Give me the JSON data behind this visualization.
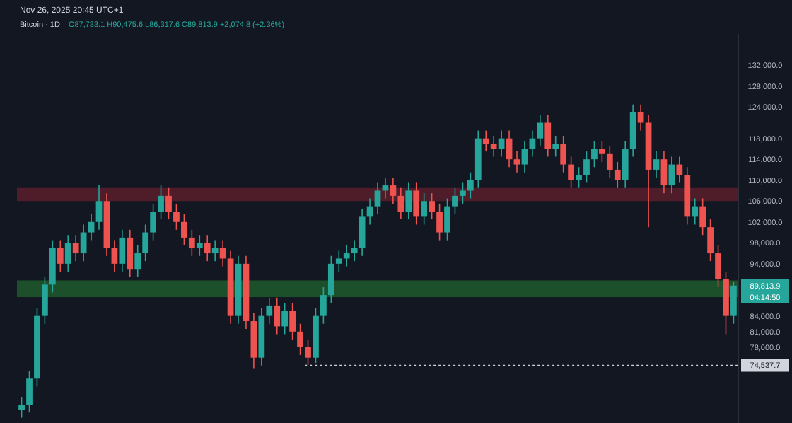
{
  "chart_data": {
    "type": "candlestick",
    "title": "Bitcoin · 1D",
    "annotations": [
      "Nov 26, 2025 20:45 UTC+1",
      "O87,733.1 H90,475.6 L86,317.6 C89,813.9 +2,074.8 (+2.36%)",
      "89,813.9",
      "04:14:50"
    ],
    "categories": [
      null,
      null,
      null,
      null,
      null,
      null,
      null,
      null,
      null,
      null,
      null,
      null,
      null,
      null,
      null,
      null,
      null,
      null,
      null,
      null,
      null,
      null,
      null,
      null,
      null,
      null,
      null,
      null,
      null,
      null,
      null,
      null,
      null,
      null,
      null,
      null,
      null,
      null,
      null,
      null,
      null,
      null,
      null,
      null,
      null,
      null,
      null,
      null,
      null,
      null,
      null,
      null,
      null,
      null,
      null,
      null,
      null,
      null,
      null,
      null,
      null,
      null,
      null,
      null,
      null,
      null,
      null,
      null,
      null,
      null,
      null,
      null,
      null,
      null,
      null,
      null,
      null,
      null,
      null,
      null,
      null,
      null,
      null,
      null,
      null,
      null,
      null,
      null,
      null,
      null,
      null,
      null,
      null
    ],
    "ohlc": [
      [
        66000,
        68500,
        64500,
        67000
      ],
      [
        67000,
        73500,
        65500,
        72000
      ],
      [
        72000,
        85500,
        70500,
        84000
      ],
      [
        84000,
        91500,
        82500,
        90000
      ],
      [
        90000,
        98500,
        88500,
        97000
      ],
      [
        97000,
        98500,
        92500,
        94000
      ],
      [
        94000,
        99500,
        92500,
        98000
      ],
      [
        98000,
        99500,
        94500,
        96000
      ],
      [
        96000,
        101500,
        94500,
        100000
      ],
      [
        100000,
        103500,
        98500,
        102000
      ],
      [
        102000,
        109000,
        100500,
        106000
      ],
      [
        106000,
        107500,
        95500,
        97000
      ],
      [
        97000,
        98500,
        92500,
        94000
      ],
      [
        94000,
        100500,
        92500,
        99000
      ],
      [
        99000,
        100500,
        91500,
        93000
      ],
      [
        93000,
        97500,
        91500,
        96000
      ],
      [
        96000,
        101500,
        94500,
        100000
      ],
      [
        100000,
        105500,
        98500,
        104000
      ],
      [
        104000,
        109000,
        102500,
        107000
      ],
      [
        107000,
        108500,
        102500,
        104000
      ],
      [
        104000,
        105500,
        100500,
        102000
      ],
      [
        102000,
        103500,
        97500,
        99000
      ],
      [
        99000,
        100500,
        95500,
        97000
      ],
      [
        97000,
        99500,
        95500,
        98000
      ],
      [
        98000,
        99500,
        94500,
        96000
      ],
      [
        96000,
        98500,
        94500,
        97000
      ],
      [
        97000,
        98500,
        93500,
        95000
      ],
      [
        95000,
        96500,
        82500,
        84000
      ],
      [
        84000,
        95500,
        82500,
        94000
      ],
      [
        94000,
        95500,
        81500,
        83000
      ],
      [
        83000,
        84500,
        74000,
        76000
      ],
      [
        76000,
        85500,
        74500,
        84000
      ],
      [
        84000,
        87500,
        82500,
        86000
      ],
      [
        86000,
        87500,
        80500,
        82000
      ],
      [
        82000,
        86500,
        80500,
        85000
      ],
      [
        85000,
        86500,
        79500,
        81000
      ],
      [
        81000,
        82500,
        76500,
        78000
      ],
      [
        78000,
        79500,
        74600,
        76000
      ],
      [
        76000,
        85500,
        75000,
        84000
      ],
      [
        84000,
        89500,
        82500,
        88000
      ],
      [
        88000,
        95500,
        86500,
        94000
      ],
      [
        94000,
        96500,
        92500,
        95000
      ],
      [
        95000,
        97500,
        93500,
        96000
      ],
      [
        96000,
        98500,
        94500,
        97000
      ],
      [
        97000,
        104500,
        95500,
        103000
      ],
      [
        103000,
        106500,
        101500,
        105000
      ],
      [
        105000,
        109500,
        103500,
        108000
      ],
      [
        108000,
        110500,
        106500,
        109000
      ],
      [
        109000,
        110500,
        105500,
        107000
      ],
      [
        107000,
        108500,
        102500,
        104000
      ],
      [
        104000,
        109500,
        102500,
        108000
      ],
      [
        108000,
        109500,
        101500,
        103000
      ],
      [
        103000,
        107500,
        101500,
        106000
      ],
      [
        106000,
        107500,
        102500,
        104000
      ],
      [
        104000,
        105500,
        98500,
        100000
      ],
      [
        100000,
        106500,
        98500,
        105000
      ],
      [
        105000,
        108500,
        103500,
        107000
      ],
      [
        107000,
        109500,
        105500,
        108000
      ],
      [
        108000,
        111500,
        106500,
        110000
      ],
      [
        110000,
        119500,
        108500,
        118000
      ],
      [
        118000,
        119500,
        115500,
        117000
      ],
      [
        117000,
        118500,
        114500,
        116000
      ],
      [
        116000,
        119500,
        114500,
        118000
      ],
      [
        118000,
        119500,
        112500,
        114000
      ],
      [
        114000,
        115500,
        111500,
        113000
      ],
      [
        113000,
        117500,
        111500,
        116000
      ],
      [
        116000,
        119500,
        114500,
        118000
      ],
      [
        118000,
        122500,
        116500,
        121000
      ],
      [
        121000,
        122500,
        114500,
        116000
      ],
      [
        116000,
        118500,
        114500,
        117000
      ],
      [
        117000,
        118500,
        111500,
        113000
      ],
      [
        113000,
        114500,
        108500,
        110000
      ],
      [
        110000,
        112500,
        108500,
        111000
      ],
      [
        111000,
        115500,
        109500,
        114000
      ],
      [
        114000,
        117500,
        112500,
        116000
      ],
      [
        116000,
        117500,
        113500,
        115000
      ],
      [
        115000,
        116500,
        110500,
        112000
      ],
      [
        112000,
        113500,
        108500,
        110000
      ],
      [
        110000,
        117500,
        108500,
        116000
      ],
      [
        116000,
        124500,
        114500,
        123000
      ],
      [
        123000,
        124500,
        119500,
        121000
      ],
      [
        121000,
        122500,
        101000,
        112000
      ],
      [
        112000,
        115500,
        110500,
        114000
      ],
      [
        114000,
        115500,
        107500,
        109000
      ],
      [
        109000,
        114500,
        107500,
        113000
      ],
      [
        113000,
        114500,
        109500,
        111000
      ],
      [
        111000,
        112500,
        101500,
        103000
      ],
      [
        103000,
        106500,
        101500,
        105000
      ],
      [
        105000,
        106500,
        99500,
        101000
      ],
      [
        101000,
        102500,
        94500,
        96000
      ],
      [
        96000,
        97500,
        89500,
        91000
      ],
      [
        91000,
        92500,
        80500,
        84000
      ],
      [
        84000,
        90475.6,
        82500,
        89813.9
      ]
    ],
    "ylim": [
      63500,
      138000
    ],
    "yticks": [
      {
        "value": 132000,
        "label": "132,000.0"
      },
      {
        "value": 128000,
        "label": "128,000.0"
      },
      {
        "value": 124000,
        "label": "124,000.0"
      },
      {
        "value": 118000,
        "label": "118,000.0"
      },
      {
        "value": 114000,
        "label": "114,000.0"
      },
      {
        "value": 110000,
        "label": "110,000.0"
      },
      {
        "value": 106000,
        "label": "106,000.0"
      },
      {
        "value": 102000,
        "label": "102,000.0"
      },
      {
        "value": 98000,
        "label": "98,000.0"
      },
      {
        "value": 94000,
        "label": "94,000.0"
      },
      {
        "value": 84000,
        "label": "84,000.0"
      },
      {
        "value": 81000,
        "label": "81,000.0"
      },
      {
        "value": 78000,
        "label": "78,000.0"
      }
    ],
    "tick_labels": "y",
    "bands": [
      {
        "axis": "y",
        "from": 106000,
        "to": 108500,
        "color": "#5a1f2b"
      },
      {
        "axis": "y",
        "from": 87600,
        "to": 90800,
        "color": "#1d5a2c"
      }
    ],
    "ref_lines": [
      {
        "axis": "y",
        "value": 74537.7,
        "label": "74,537.7",
        "line_style": "dotted",
        "color": "#d1d4dc"
      }
    ]
  }
}
